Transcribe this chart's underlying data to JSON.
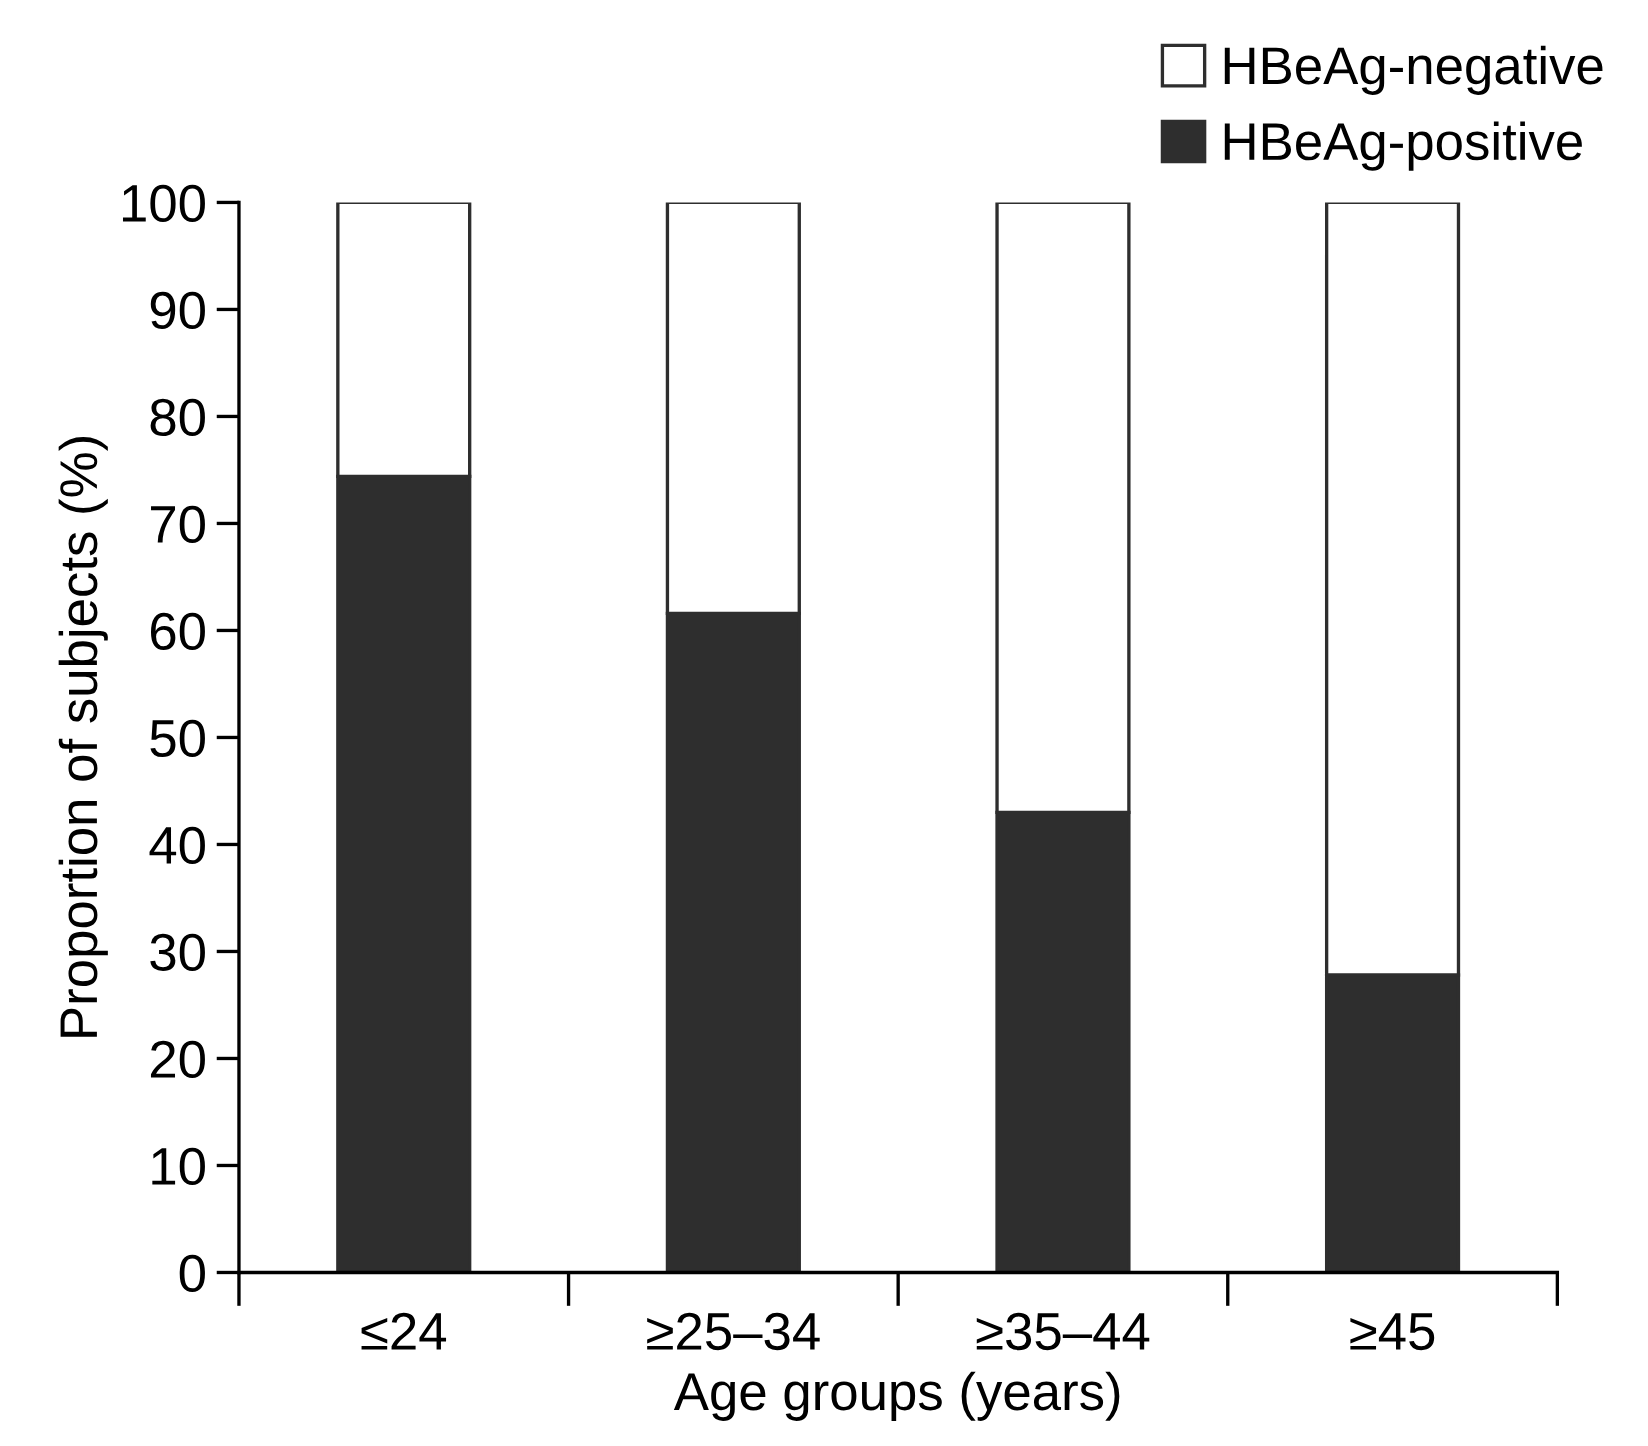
{
  "chart_data": {
    "type": "bar",
    "stacked": true,
    "xlabel": "Age groups (years)",
    "ylabel": "Proportion of subjects (%)",
    "categories": [
      "≤24",
      "≥25–34",
      "≥35–44",
      "≥45"
    ],
    "series": [
      {
        "name": "HBeAg-positive",
        "color": "#2e2e2e",
        "values": [
          74.4,
          61.6,
          43.0,
          27.8
        ]
      },
      {
        "name": "HBeAg-negative",
        "color": "#ffffff",
        "values": [
          25.6,
          38.4,
          57.0,
          72.2
        ]
      }
    ],
    "ylim": [
      0,
      100
    ],
    "yticks": [
      0,
      10,
      20,
      30,
      40,
      50,
      60,
      70,
      80,
      90,
      100
    ],
    "grid": false,
    "legend": "top right"
  }
}
